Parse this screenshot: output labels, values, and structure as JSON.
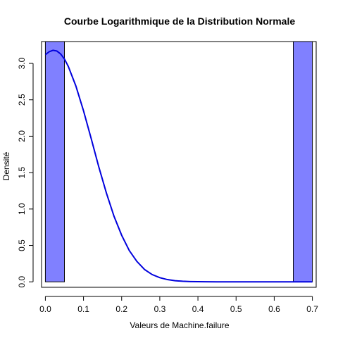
{
  "chart_data": {
    "type": "histogram",
    "title": "Courbe Logarithmique de la Distribution Normale",
    "xlabel": "Valeurs de Machine.failure",
    "ylabel": "Densité",
    "xlim": [
      -0.01,
      0.71
    ],
    "ylim": [
      -0.075,
      3.3
    ],
    "x_ticks": [
      0.0,
      0.1,
      0.2,
      0.3,
      0.4,
      0.5,
      0.6,
      0.7
    ],
    "x_tick_labels": [
      "0.0",
      "0.1",
      "0.2",
      "0.3",
      "0.4",
      "0.5",
      "0.6",
      "0.7"
    ],
    "y_ticks": [
      0.0,
      0.5,
      1.0,
      1.5,
      2.0,
      2.5,
      3.0
    ],
    "y_tick_labels": [
      "0.0",
      "0.5",
      "1.0",
      "1.5",
      "2.0",
      "2.5",
      "3.0"
    ],
    "bars": [
      {
        "x0": 0.0,
        "x1": 0.05,
        "value": 3.3
      },
      {
        "x0": 0.05,
        "x1": 0.1,
        "value": 0
      },
      {
        "x0": 0.1,
        "x1": 0.15,
        "value": 0
      },
      {
        "x0": 0.15,
        "x1": 0.2,
        "value": 0
      },
      {
        "x0": 0.2,
        "x1": 0.25,
        "value": 0
      },
      {
        "x0": 0.25,
        "x1": 0.3,
        "value": 0
      },
      {
        "x0": 0.3,
        "x1": 0.35,
        "value": 0
      },
      {
        "x0": 0.35,
        "x1": 0.4,
        "value": 0
      },
      {
        "x0": 0.4,
        "x1": 0.45,
        "value": 0
      },
      {
        "x0": 0.45,
        "x1": 0.5,
        "value": 0
      },
      {
        "x0": 0.5,
        "x1": 0.55,
        "value": 0
      },
      {
        "x0": 0.55,
        "x1": 0.6,
        "value": 0
      },
      {
        "x0": 0.6,
        "x1": 0.65,
        "value": 0
      },
      {
        "x0": 0.65,
        "x1": 0.7,
        "value": 3.3
      }
    ],
    "bar_color": "#8080ff",
    "curve": {
      "color": "#0000dd",
      "x": [
        0.0,
        0.01,
        0.02,
        0.03,
        0.04,
        0.05,
        0.06,
        0.08,
        0.1,
        0.12,
        0.14,
        0.16,
        0.18,
        0.2,
        0.22,
        0.24,
        0.26,
        0.28,
        0.3,
        0.32,
        0.34,
        0.36,
        0.38,
        0.4,
        0.42,
        0.45,
        0.5,
        0.55,
        0.6,
        0.65,
        0.7
      ],
      "y": [
        3.12,
        3.16,
        3.18,
        3.17,
        3.13,
        3.06,
        2.96,
        2.69,
        2.35,
        1.97,
        1.58,
        1.22,
        0.9,
        0.64,
        0.43,
        0.28,
        0.17,
        0.1,
        0.057,
        0.031,
        0.016,
        0.008,
        0.004,
        0.002,
        0.001,
        0.0002,
        0.0,
        0.0,
        0.0,
        0.0,
        0.0
      ]
    },
    "grid": false,
    "legend": "none"
  }
}
